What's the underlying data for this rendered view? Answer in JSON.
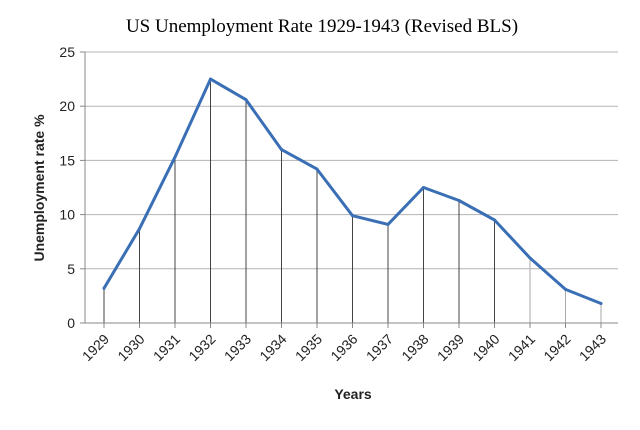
{
  "chart_data": {
    "type": "line",
    "title": "US Unemployment Rate 1929-1943 (Revised BLS)",
    "xlabel": "Years",
    "ylabel": "Unemployment rate %",
    "categories": [
      "1929",
      "1930",
      "1931",
      "1932",
      "1933",
      "1934",
      "1935",
      "1936",
      "1937",
      "1938",
      "1939",
      "1940",
      "1941",
      "1942",
      "1943"
    ],
    "series": [
      {
        "values": [
          3.2,
          8.7,
          15.3,
          22.5,
          20.6,
          16.0,
          14.2,
          9.9,
          9.1,
          12.5,
          11.3,
          9.5,
          6.0,
          3.1,
          1.8
        ]
      }
    ],
    "yticks": [
      "0",
      "5",
      "10",
      "15",
      "20",
      "25"
    ],
    "ylim": [
      0,
      25
    ],
    "grid": "horizontal",
    "drop_lines": true,
    "legend": "none",
    "colors": {
      "line": "#3a6fb5",
      "grid": "#b3b3b3",
      "drop": "#444444",
      "axis": "#888888"
    }
  }
}
